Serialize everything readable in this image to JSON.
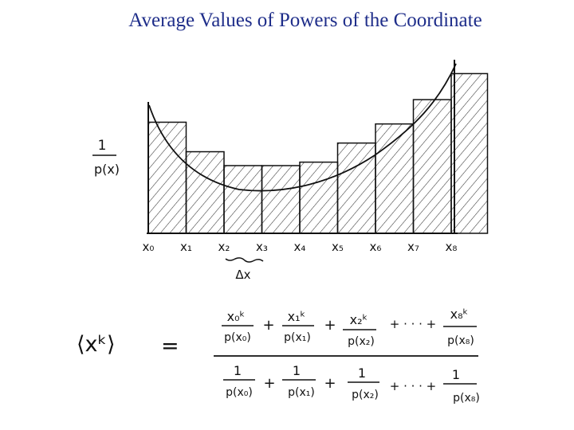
{
  "slide": {
    "title": "Average Values of Powers of the Coordinate"
  },
  "graph": {
    "y_label_num": "1",
    "y_label_den": "p(x)",
    "x_ticks": [
      "x₀",
      "x₁",
      "x₂",
      "x₃",
      "x₄",
      "x₅",
      "x₆",
      "x₇",
      "x₈"
    ],
    "bar_levels": [
      0.64,
      0.47,
      0.39,
      0.39,
      0.41,
      0.52,
      0.63,
      0.77,
      0.92
    ],
    "dx_label": "Δx"
  },
  "formula": {
    "lhs": "⟨xᵏ⟩",
    "equals": "=",
    "numerator_terms": [
      {
        "num": "x₀ᵏ",
        "den": "p(x₀)"
      },
      {
        "num": "x₁ᵏ",
        "den": "p(x₁)"
      },
      {
        "num": "x₂ᵏ",
        "den": "p(x₂)"
      },
      {
        "num": "x₈ᵏ",
        "den": "p(x₈)"
      }
    ],
    "denominator_terms": [
      {
        "num": "1",
        "den": "p(x₀)"
      },
      {
        "num": "1",
        "den": "p(x₁)"
      },
      {
        "num": "1",
        "den": "p(x₂)"
      },
      {
        "num": "1",
        "den": "p(x₈)"
      }
    ],
    "plus": "+",
    "ellipsis_plus": "+ · · · +"
  }
}
